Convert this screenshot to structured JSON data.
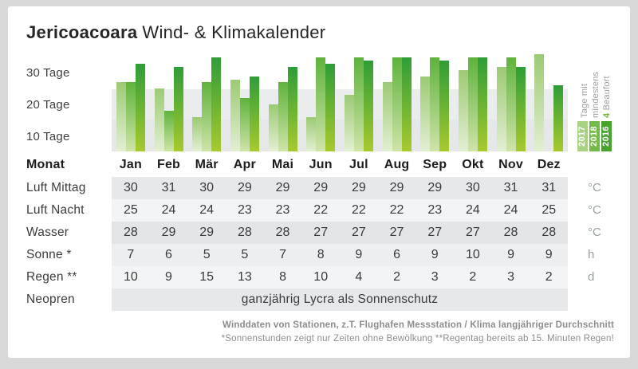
{
  "title": {
    "brand": "Jericoacoara",
    "rest": "Wind- & Klimakalender"
  },
  "chart_data": {
    "type": "bar",
    "title": "Tage mit mindestens 4 Beaufort",
    "categories": [
      "Jan",
      "Feb",
      "Mär",
      "Apr",
      "Mai",
      "Jun",
      "Jul",
      "Aug",
      "Sep",
      "Okt",
      "Nov",
      "Dez"
    ],
    "series": [
      {
        "name": "2017",
        "color": "#a9d282",
        "values": [
          22,
          20,
          11,
          23,
          15,
          11,
          18,
          22,
          24,
          26,
          27,
          31
        ]
      },
      {
        "name": "2018",
        "color": "#74ba4a",
        "values": [
          22,
          13,
          22,
          17,
          22,
          30,
          30,
          30,
          30,
          30,
          30,
          null
        ]
      },
      {
        "name": "2016",
        "color": "#46a32b",
        "values": [
          28,
          27,
          30,
          24,
          27,
          28,
          29,
          30,
          29,
          30,
          27,
          21
        ]
      }
    ],
    "y_ticks": [
      "30 Tage",
      "20 Tage",
      "10 Tage"
    ],
    "ylim": [
      0,
      40
    ],
    "unit": "Tage",
    "grid": "horizontal-bands",
    "legend_position": "right-rotated",
    "legend": {
      "lines": [
        "Tage mit",
        "mindestens"
      ],
      "accent": "4",
      "accent_rest": " Beaufort",
      "years": [
        "2017",
        "2018",
        "2016"
      ]
    }
  },
  "table": {
    "month_header_label": "Monat",
    "months": [
      "Jan",
      "Feb",
      "Mär",
      "Apr",
      "Mai",
      "Jun",
      "Jul",
      "Aug",
      "Sep",
      "Okt",
      "Nov",
      "Dez"
    ],
    "rows": [
      {
        "label": "Luft Mittag",
        "unit": "°C",
        "values": [
          30,
          31,
          30,
          29,
          29,
          29,
          29,
          29,
          29,
          30,
          31,
          31
        ]
      },
      {
        "label": "Luft Nacht",
        "unit": "°C",
        "values": [
          25,
          24,
          24,
          23,
          23,
          22,
          22,
          22,
          23,
          24,
          24,
          25
        ]
      },
      {
        "label": "Wasser",
        "unit": "°C",
        "values": [
          28,
          29,
          29,
          28,
          28,
          27,
          27,
          27,
          27,
          27,
          28,
          28
        ]
      },
      {
        "label": "Sonne *",
        "unit": "h",
        "values": [
          7,
          6,
          5,
          5,
          7,
          8,
          9,
          6,
          9,
          10,
          9,
          9
        ]
      },
      {
        "label": "Regen **",
        "unit": "d",
        "values": [
          10,
          9,
          15,
          13,
          8,
          10,
          4,
          2,
          3,
          2,
          3,
          2
        ]
      },
      {
        "label": "Neopren",
        "unit": "",
        "span_text": "ganzjährig Lycra als Sonnenschutz"
      }
    ]
  },
  "footer": {
    "line1": "Winddaten von Stationen, z.T. Flughafen Messstation / Klima langjähriger Durchschnitt",
    "line2": "*Sonnenstunden zeigt nur Zeiten ohne Bewölkung  **Regentag bereits ab 15. Minuten Regen!"
  },
  "colors": {
    "page_frame": "#d9d9d9",
    "card": "#ffffff",
    "accent_green": "#72b52c",
    "band_gray_1": "#ebecee",
    "band_gray_2": "#e6e7e9",
    "text_dark": "#262626",
    "text_gray": "#8d8d8d"
  }
}
